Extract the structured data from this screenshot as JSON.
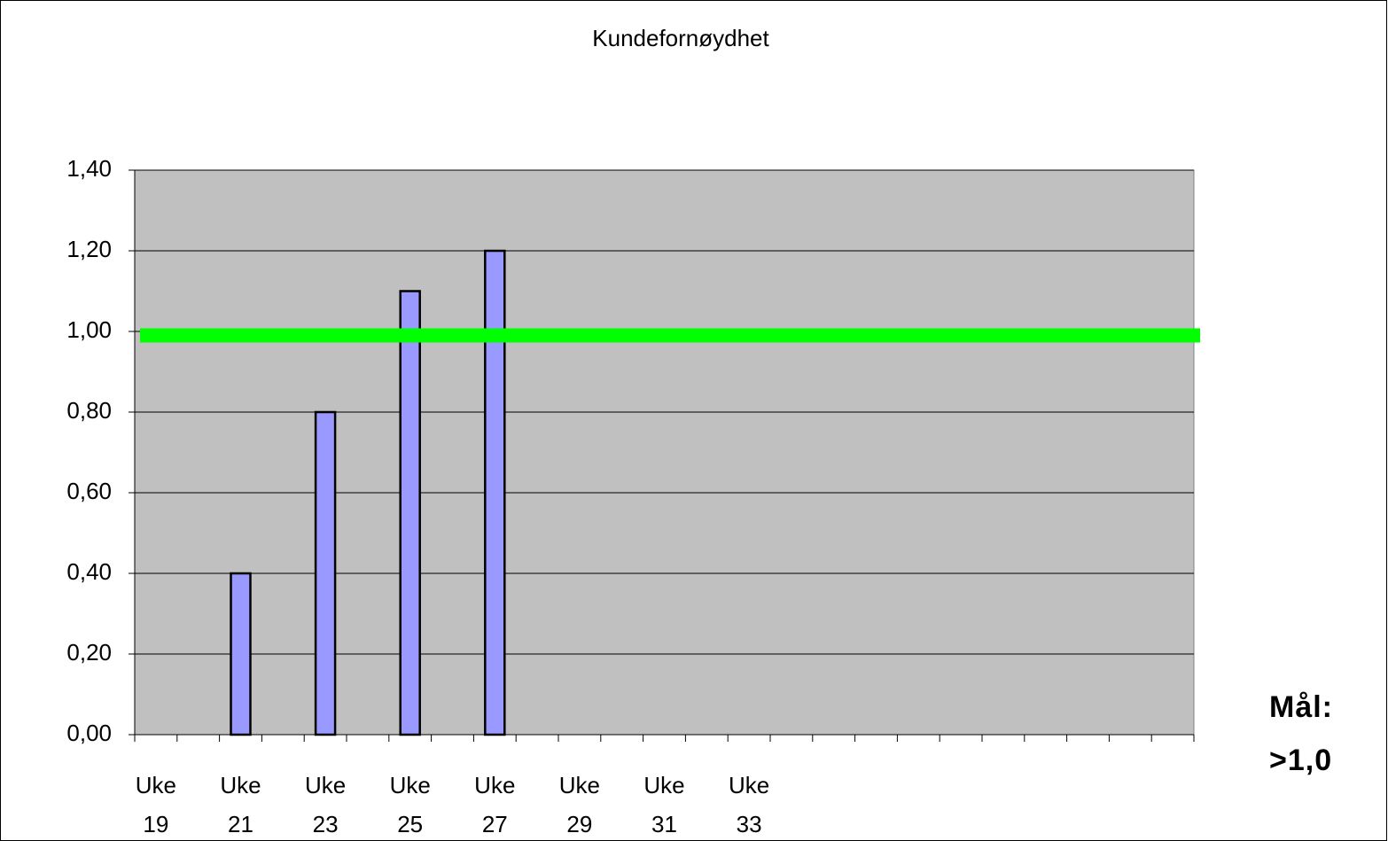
{
  "chart_data": {
    "type": "bar",
    "title": "Kundefornøydhet",
    "categories": [
      "Uke 19",
      null,
      "Uke 21",
      null,
      "Uke 23",
      null,
      "Uke 25",
      null,
      "Uke 27",
      null,
      "Uke 29",
      null,
      "Uke 31",
      null,
      "Uke 33",
      null,
      null,
      null,
      null,
      null,
      null,
      null,
      null,
      null,
      null
    ],
    "values": [
      null,
      null,
      0.4,
      null,
      0.8,
      null,
      1.1,
      null,
      1.2,
      null,
      null,
      null,
      null,
      null,
      null,
      null,
      null,
      null,
      null,
      null,
      null,
      null,
      null,
      null,
      null
    ],
    "color": "#9999ff",
    "ylim": [
      0,
      1.4
    ],
    "yticks": [
      {
        "value": 0,
        "label": "0,00"
      },
      {
        "value": 0.2,
        "label": "0,20"
      },
      {
        "value": 0.4,
        "label": "0,40"
      },
      {
        "value": 0.6,
        "label": "0,60"
      },
      {
        "value": 0.8,
        "label": "0,80"
      },
      {
        "value": 1.0,
        "label": "1,00"
      },
      {
        "value": 1.2,
        "label": "1,20"
      },
      {
        "value": 1.4,
        "label": "1,40"
      }
    ],
    "grid": true,
    "plot_background": "#c0c0c0",
    "target_line": {
      "value": 0.99,
      "color": "#00ff00"
    },
    "annotation": "Mål: >1,0"
  }
}
